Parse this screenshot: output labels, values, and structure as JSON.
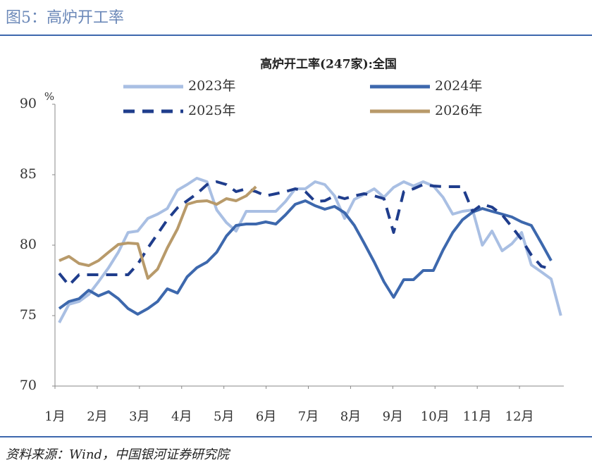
{
  "header": "图5：高炉开工率",
  "source": "资料来源：Wind，中国银河证券研究院",
  "chart_data": {
    "type": "line",
    "title": "高炉开工率(247家):全国",
    "y_unit": "%",
    "x": [
      1.1,
      1.33,
      1.57,
      1.8,
      2.03,
      2.27,
      2.5,
      2.73,
      2.96,
      3.2,
      3.43,
      3.66,
      3.9,
      4.13,
      4.36,
      4.6,
      4.83,
      5.06,
      5.29,
      5.53,
      5.76,
      5.99,
      6.23,
      6.46,
      6.69,
      6.93,
      7.16,
      7.39,
      7.62,
      7.86,
      8.09,
      8.32,
      8.56,
      8.79,
      9.02,
      9.26,
      9.49,
      9.72,
      9.96,
      10.19,
      10.42,
      10.65,
      10.89,
      11.12,
      11.35,
      11.59,
      11.82,
      12.05,
      12.28,
      12.52,
      12.75,
      12.98
    ],
    "xlim": [
      1,
      13.05
    ],
    "xticks": [
      {
        "value": 1,
        "label": "1月"
      },
      {
        "value": 2,
        "label": "2月"
      },
      {
        "value": 3,
        "label": "3月"
      },
      {
        "value": 4,
        "label": "4月"
      },
      {
        "value": 5,
        "label": "5月"
      },
      {
        "value": 6,
        "label": "6月"
      },
      {
        "value": 7,
        "label": "7月"
      },
      {
        "value": 8,
        "label": "8月"
      },
      {
        "value": 9,
        "label": "9月"
      },
      {
        "value": 10,
        "label": "10月"
      },
      {
        "value": 11,
        "label": "11月"
      },
      {
        "value": 12,
        "label": "12月"
      }
    ],
    "ylim": [
      70,
      90
    ],
    "yticks": [
      70,
      75,
      80,
      85,
      90
    ],
    "grid": false,
    "series": [
      {
        "name": "2023年",
        "color": "#a9bfe3",
        "dash": false,
        "values": [
          74.5,
          75.8,
          76,
          76.5,
          77.4,
          78.4,
          79.5,
          80.9,
          81,
          81.9,
          82.2,
          82.6,
          83.9,
          84.3,
          84.75,
          84.5,
          82.5,
          81.6,
          81,
          82.4,
          82.4,
          82.4,
          82.4,
          83.1,
          84,
          84,
          84.5,
          84.3,
          83.5,
          81.9,
          83.25,
          83.6,
          84,
          83.4,
          84.1,
          84.5,
          84.2,
          84.5,
          84.2,
          83.4,
          82.2,
          82.4,
          82.5,
          80,
          81,
          79.6,
          80.1,
          80.9,
          78.6,
          78.1,
          77.6,
          75
        ]
      },
      {
        "name": "2024年",
        "color": "#3d68ad",
        "dash": false,
        "values": [
          75.5,
          76,
          76.2,
          76.8,
          76.4,
          76.7,
          76.2,
          75.5,
          75.1,
          75.5,
          76,
          76.9,
          76.6,
          77.75,
          78.4,
          78.8,
          79.5,
          80.65,
          81.4,
          81.5,
          81.5,
          81.65,
          81.5,
          82.15,
          82.9,
          83.15,
          82.8,
          82.55,
          82.75,
          82.3,
          81.4,
          80.15,
          78.8,
          77.4,
          76.3,
          77.55,
          77.55,
          78.2,
          78.2,
          79.65,
          80.9,
          81.8,
          82.35,
          82.6,
          82.4,
          82.2,
          82,
          81.65,
          81.4,
          80.15,
          78.9,
          null
        ]
      },
      {
        "name": "2025年",
        "color": "#1f3d8c",
        "dash": true,
        "values": [
          78,
          77.15,
          77.9,
          77.9,
          77.9,
          77.9,
          77.9,
          77.9,
          78.65,
          79.8,
          80.8,
          81.8,
          82.65,
          83.15,
          83.65,
          84.3,
          84.5,
          84.3,
          83.8,
          84,
          83.8,
          83.5,
          83.65,
          83.8,
          84,
          83.8,
          83.1,
          83.15,
          83.5,
          83.3,
          83.5,
          83.65,
          83.5,
          83.3,
          80.9,
          83.8,
          84,
          84.3,
          84.2,
          84.15,
          84.15,
          84.15,
          82.4,
          82.9,
          82.7,
          82.15,
          81.3,
          80.4,
          79.3,
          78.5,
          78.3,
          null
        ]
      },
      {
        "name": "2026年",
        "color": "#b89a6a",
        "dash": false,
        "values": [
          78.9,
          79.2,
          78.7,
          78.55,
          78.9,
          79.5,
          80.05,
          80.15,
          80.1,
          77.65,
          78.3,
          79.8,
          81.15,
          82.9,
          83.1,
          83.15,
          82.9,
          83.3,
          83.15,
          83.5,
          84.15,
          null,
          null,
          null,
          null,
          null,
          null,
          null,
          null,
          null,
          null,
          null,
          null,
          null,
          null,
          null,
          null,
          null,
          null,
          null,
          null,
          null,
          null,
          null,
          null,
          null,
          null,
          null,
          null,
          null,
          null,
          null
        ]
      }
    ]
  }
}
